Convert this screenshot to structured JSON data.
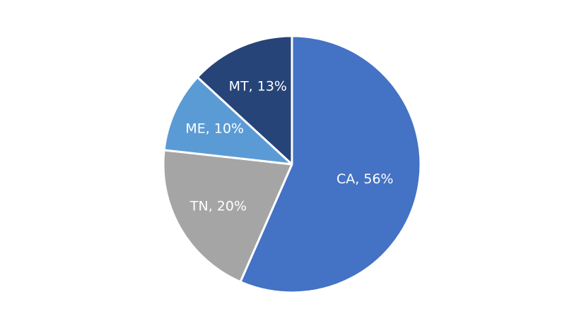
{
  "chart_data": {
    "type": "pie",
    "values": [
      56,
      20,
      10,
      13
    ],
    "value_labels": [
      "CA, 56%",
      "TN, 20%",
      "ME, 10%",
      "MT, 13%"
    ],
    "colors": [
      "#4472c4",
      "#a5a5a5",
      "#5b9bd5",
      "#264478"
    ]
  }
}
